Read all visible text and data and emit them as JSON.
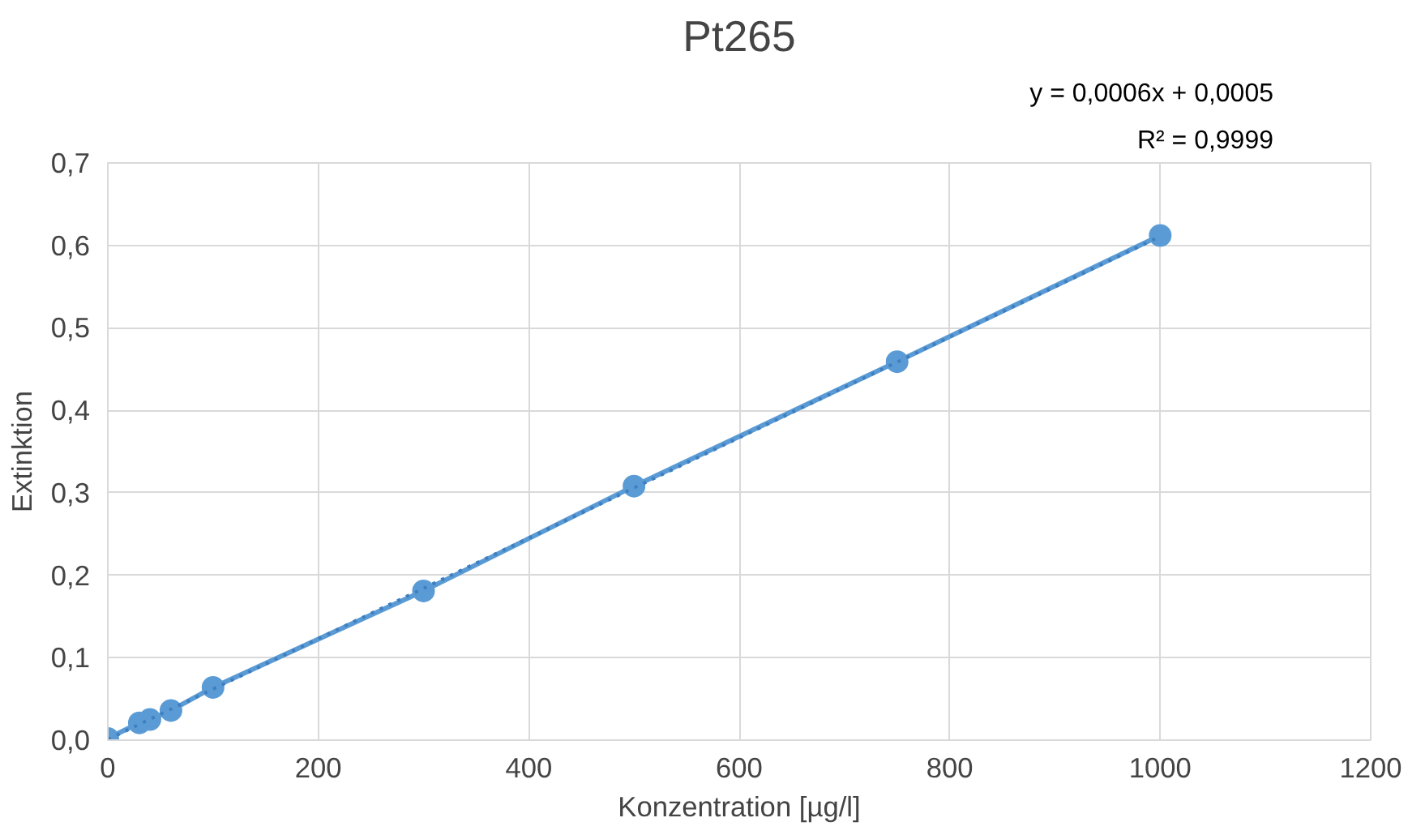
{
  "chart_data": {
    "type": "line",
    "title": "Pt265",
    "xlabel": "Konzentration [µg/l]",
    "ylabel": "Extinktion",
    "annotations": [
      "y = 0,0006x + 0,0005",
      "R² = 0,9999"
    ],
    "x": [
      0,
      30,
      40,
      60,
      100,
      300,
      500,
      750,
      1000
    ],
    "series": [
      {
        "color": "#5b9bd5",
        "marker": "circle",
        "line_style": "solid",
        "values": [
          0.002,
          0.021,
          0.025,
          0.036,
          0.064,
          0.181,
          0.308,
          0.459,
          0.612
        ]
      },
      {
        "type": "line",
        "color": "#3f7fbf",
        "marker": "none",
        "line_style": "dotted",
        "x": [
          0,
          1000
        ],
        "values": [
          0.001,
          0.611
        ]
      }
    ],
    "xlim": [
      0,
      1200
    ],
    "xticks": [
      0,
      200,
      400,
      600,
      800,
      1000,
      1200
    ],
    "ylim": [
      0,
      0.7
    ],
    "yticks": [
      {
        "value": 0,
        "label": "0,0"
      },
      {
        "value": 0.1,
        "label": "0,1"
      },
      {
        "value": 0.2,
        "label": "0,2"
      },
      {
        "value": 0.3,
        "label": "0,3"
      },
      {
        "value": 0.4,
        "label": "0,4"
      },
      {
        "value": 0.5,
        "label": "0,5"
      },
      {
        "value": 0.6,
        "label": "0,6"
      },
      {
        "value": 0.7,
        "label": "0,7"
      }
    ],
    "grid": true
  }
}
